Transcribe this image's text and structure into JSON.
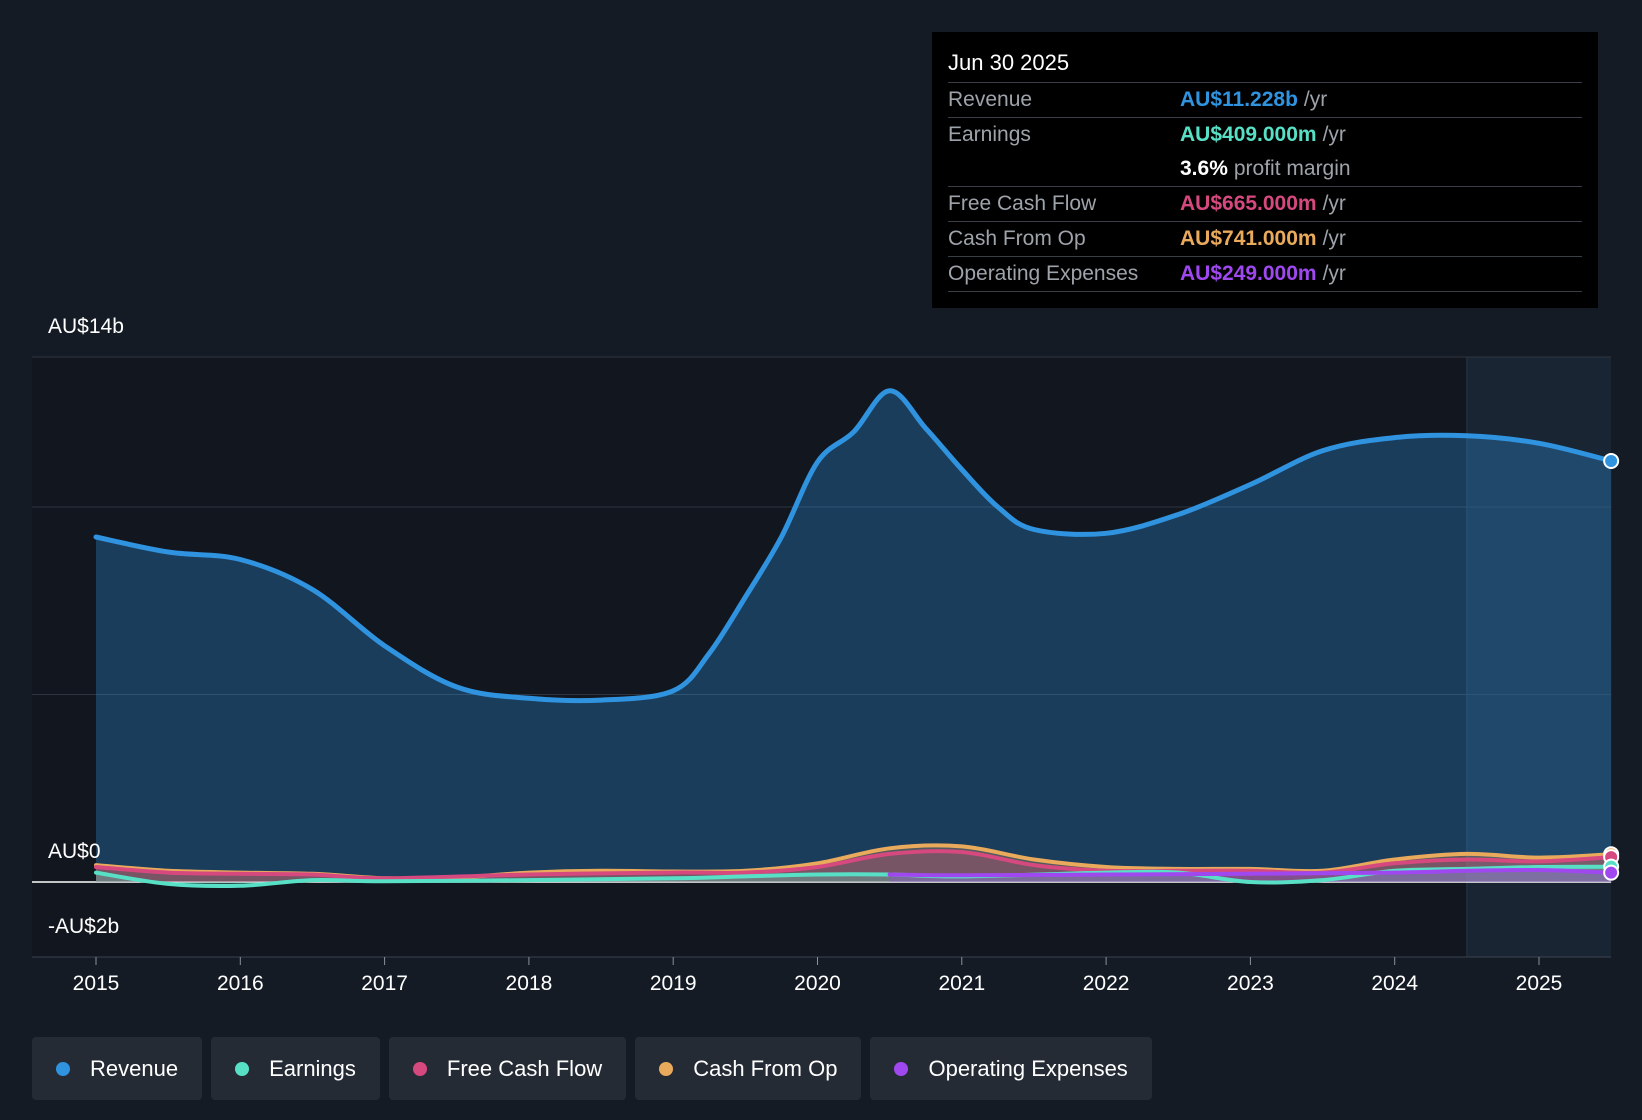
{
  "tooltip": {
    "date": "Jun 30 2025",
    "rows": [
      {
        "label": "Revenue",
        "value": "AU$11.228b",
        "unit": "/yr",
        "color": "#2f93e0"
      },
      {
        "label": "Earnings",
        "value": "AU$409.000m",
        "unit": "/yr",
        "color": "#58e0c6"
      },
      {
        "label": "",
        "value": "3.6%",
        "unit": "profit margin",
        "color": "#ffffff"
      },
      {
        "label": "Free Cash Flow",
        "value": "AU$665.000m",
        "unit": "/yr",
        "color": "#d5497f"
      },
      {
        "label": "Cash From Op",
        "value": "AU$741.000m",
        "unit": "/yr",
        "color": "#eaaa5c"
      },
      {
        "label": "Operating Expenses",
        "value": "AU$249.000m",
        "unit": "/yr",
        "color": "#a048f0"
      }
    ]
  },
  "legend": [
    {
      "label": "Revenue",
      "color": "#2f93e0"
    },
    {
      "label": "Earnings",
      "color": "#58e0c6"
    },
    {
      "label": "Free Cash Flow",
      "color": "#d5497f"
    },
    {
      "label": "Cash From Op",
      "color": "#eaaa5c"
    },
    {
      "label": "Operating Expenses",
      "color": "#a048f0"
    }
  ],
  "chart_data": {
    "type": "area",
    "title": "",
    "y_labels": [
      "AU$14b",
      "AU$0",
      "-AU$2b"
    ],
    "ylim": [
      -2,
      14
    ],
    "xlim": [
      2014.55,
      2025.5
    ],
    "x_ticks": [
      2015,
      2016,
      2017,
      2018,
      2019,
      2020,
      2021,
      2022,
      2023,
      2024,
      2025
    ],
    "x_tick_labels": [
      "2015",
      "2016",
      "2017",
      "2018",
      "2019",
      "2020",
      "2021",
      "2022",
      "2023",
      "2024",
      "2025"
    ],
    "gridlines": [
      14,
      10,
      5,
      0
    ],
    "forecast_region_start": 2024.5,
    "series": [
      {
        "name": "Revenue",
        "color": "#2f93e0",
        "x": [
          2015.0,
          2015.5,
          2016.0,
          2016.5,
          2017.0,
          2017.5,
          2018.0,
          2018.5,
          2019.0,
          2019.25,
          2019.5,
          2019.75,
          2020.0,
          2020.25,
          2020.5,
          2020.75,
          2021.0,
          2021.25,
          2021.5,
          2022.0,
          2022.5,
          2023.0,
          2023.5,
          2024.0,
          2024.5,
          2025.0,
          2025.5
        ],
        "values": [
          9.2,
          8.8,
          8.6,
          7.8,
          6.3,
          5.2,
          4.9,
          4.85,
          5.1,
          6.1,
          7.6,
          9.2,
          11.2,
          12.0,
          13.1,
          12.1,
          11.0,
          10.0,
          9.4,
          9.3,
          9.8,
          10.6,
          11.5,
          11.85,
          11.9,
          11.7,
          11.228
        ]
      },
      {
        "name": "Earnings",
        "color": "#58e0c6",
        "x": [
          2015.0,
          2015.5,
          2016.0,
          2016.5,
          2017.0,
          2018.0,
          2019.0,
          2019.5,
          2020.0,
          2020.5,
          2021.0,
          2022.0,
          2022.5,
          2023.0,
          2023.5,
          2024.0,
          2024.5,
          2025.0,
          2025.5
        ],
        "values": [
          0.25,
          -0.05,
          -0.1,
          0.05,
          0.02,
          0.05,
          0.1,
          0.15,
          0.2,
          0.2,
          0.15,
          0.25,
          0.25,
          0.0,
          0.05,
          0.3,
          0.35,
          0.4,
          0.409
        ]
      },
      {
        "name": "Free Cash Flow",
        "color": "#d5497f",
        "x": [
          2015.0,
          2015.5,
          2016.0,
          2016.5,
          2017.0,
          2018.0,
          2019.0,
          2019.5,
          2020.0,
          2020.5,
          2021.0,
          2021.5,
          2022.0,
          2022.5,
          2023.0,
          2023.5,
          2024.0,
          2024.5,
          2025.0,
          2025.5
        ],
        "values": [
          0.4,
          0.25,
          0.22,
          0.2,
          0.1,
          0.2,
          0.25,
          0.25,
          0.4,
          0.75,
          0.8,
          0.45,
          0.3,
          0.3,
          0.3,
          0.25,
          0.5,
          0.6,
          0.55,
          0.665
        ]
      },
      {
        "name": "Cash From Op",
        "color": "#eaaa5c",
        "x": [
          2015.0,
          2015.5,
          2016.0,
          2016.5,
          2017.0,
          2017.5,
          2018.0,
          2018.5,
          2019.0,
          2019.5,
          2020.0,
          2020.5,
          2021.0,
          2021.5,
          2022.0,
          2022.5,
          2023.0,
          2023.5,
          2024.0,
          2024.5,
          2025.0,
          2025.5
        ],
        "values": [
          0.45,
          0.3,
          0.25,
          0.22,
          0.1,
          0.12,
          0.25,
          0.3,
          0.28,
          0.3,
          0.5,
          0.9,
          0.95,
          0.6,
          0.4,
          0.35,
          0.35,
          0.3,
          0.6,
          0.75,
          0.65,
          0.741
        ]
      },
      {
        "name": "Operating Expenses",
        "color": "#a048f0",
        "x": [
          2020.5,
          2021.0,
          2022.0,
          2023.0,
          2024.0,
          2024.5,
          2025.0,
          2025.5
        ],
        "values": [
          0.2,
          0.18,
          0.2,
          0.22,
          0.25,
          0.3,
          0.32,
          0.249
        ]
      }
    ]
  }
}
